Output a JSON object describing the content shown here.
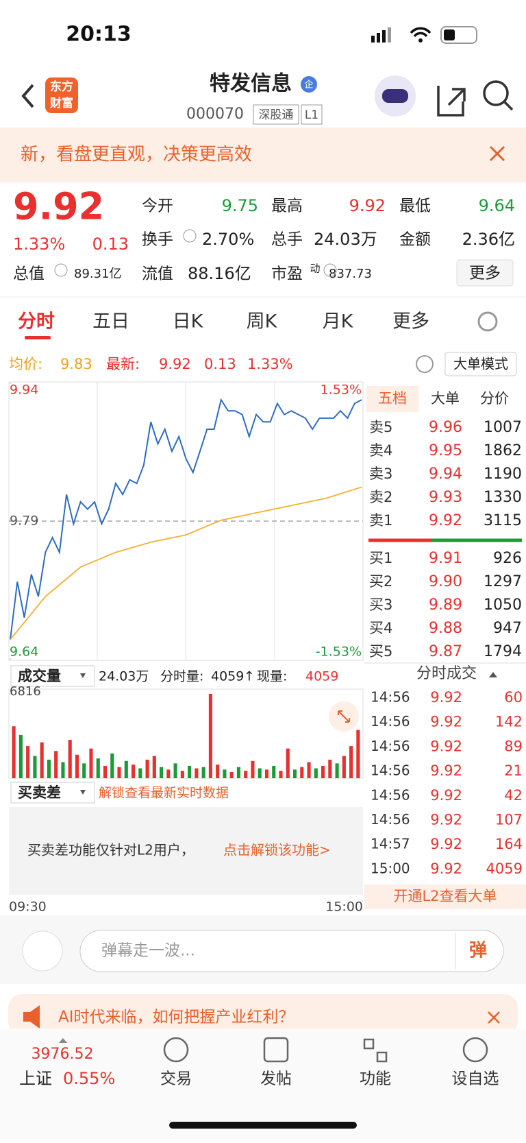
{
  "status": {
    "time": "20:13"
  },
  "header": {
    "logo": [
      "东方",
      "财富"
    ],
    "title": "特发信息",
    "badge": "企",
    "code": "000070",
    "tags": [
      "深股通",
      "L1"
    ]
  },
  "banner": {
    "text": "新，看盘更直观，决策更高效"
  },
  "quote": {
    "price": "9.92",
    "change_pct": "1.33%",
    "change": "0.13",
    "stats": [
      [
        "今开",
        "9.75"
      ],
      [
        "最高",
        "9.92"
      ],
      [
        "最低",
        "9.64"
      ],
      [
        "换手",
        "2.70%"
      ],
      [
        "总手",
        "24.03万"
      ],
      [
        "金额",
        "2.36亿"
      ],
      [
        "总值",
        "89.31亿"
      ],
      [
        "流值",
        "88.16亿"
      ],
      [
        "市盈",
        "837.73"
      ]
    ],
    "pe_sup": "动",
    "more": "更多"
  },
  "tabs": [
    "分时",
    "五日",
    "日K",
    "周K",
    "月K",
    "更多"
  ],
  "info": {
    "avg_label": "均价:",
    "avg": "9.83",
    "latest_label": "最新:",
    "latest": "9.92",
    "change": "0.13",
    "change_pct": "1.33%",
    "mode": "大单模式"
  },
  "chart_data": {
    "type": "line",
    "ylim": [
      9.64,
      9.94
    ],
    "yticks": [
      9.64,
      9.79,
      9.94
    ],
    "pct_labels": [
      "1.53%",
      "-1.53%"
    ],
    "x_labels": [
      "09:30",
      "15:00"
    ],
    "series": [
      {
        "color": "#2d6cc0",
        "values": [
          9.661,
          9.724,
          9.685,
          9.732,
          9.708,
          9.756,
          9.772,
          9.756,
          9.819,
          9.787,
          9.811,
          9.803,
          9.811,
          9.787,
          9.803,
          9.831,
          9.819,
          9.835,
          9.831,
          9.851,
          9.898,
          9.874,
          9.89,
          9.866,
          9.882,
          9.858,
          9.843,
          9.866,
          9.89,
          9.89,
          9.922,
          9.91,
          9.91,
          9.906,
          9.882,
          9.906,
          9.898,
          9.898,
          9.918,
          9.906,
          9.91,
          9.906,
          9.902,
          9.89,
          9.902,
          9.902,
          9.902,
          9.91,
          9.902,
          9.918,
          9.922
        ]
      },
      {
        "color": "#f5b02e",
        "values": [
          9.661,
          9.708,
          9.74,
          9.756,
          9.767,
          9.775,
          9.791,
          9.799,
          9.807,
          9.815,
          9.827
        ]
      }
    ]
  },
  "order_book": {
    "tabs": [
      "五档",
      "大单",
      "分价"
    ],
    "asks": [
      [
        "卖5",
        "9.96",
        "1007"
      ],
      [
        "卖4",
        "9.95",
        "1862"
      ],
      [
        "卖3",
        "9.94",
        "1190"
      ],
      [
        "卖2",
        "9.93",
        "1330"
      ],
      [
        "卖1",
        "9.92",
        "3115"
      ]
    ],
    "bids": [
      [
        "买1",
        "9.91",
        "926"
      ],
      [
        "买2",
        "9.90",
        "1297"
      ],
      [
        "买3",
        "9.89",
        "1050"
      ],
      [
        "买4",
        "9.88",
        "947"
      ],
      [
        "买5",
        "9.87",
        "1794"
      ]
    ]
  },
  "volume": {
    "selector": "成交量",
    "total": "24.03万",
    "interval_label": "分时量:",
    "interval": "4059",
    "arrow": "↑",
    "current_label": "现量:",
    "current": "4059",
    "ylim": [
      0,
      6816
    ],
    "yticks": [
      6816
    ],
    "values": [
      4200,
      3500,
      2600,
      1800,
      2900,
      1500,
      2200,
      1300,
      3100,
      1900,
      1200,
      2400,
      1600,
      1000,
      2000,
      900,
      1400,
      1100,
      800,
      1500,
      1800,
      900,
      700,
      1200,
      600,
      1000,
      800,
      900,
      6816,
      1100,
      700,
      500,
      900,
      600,
      1400,
      800,
      700,
      1000,
      600,
      2400,
      700,
      900,
      1300,
      800,
      1000,
      1500,
      1200,
      1800,
      2600,
      3900
    ],
    "colors": [
      "#e8312f",
      "#1a9b38",
      "#e8312f",
      "#1a9b38",
      "#e8312f",
      "#1a9b38",
      "#e8312f",
      "#1a9b38",
      "#e8312f",
      "#e8312f",
      "#1a9b38",
      "#e8312f",
      "#1a9b38",
      "#e8312f",
      "#1a9b38",
      "#e8312f",
      "#1a9b38",
      "#e8312f",
      "#1a9b38",
      "#e8312f",
      "#e8312f",
      "#1a9b38",
      "#e8312f",
      "#1a9b38",
      "#e8312f",
      "#1a9b38",
      "#e8312f",
      "#1a9b38",
      "#e8312f",
      "#e8312f",
      "#1a9b38",
      "#e8312f",
      "#1a9b38",
      "#e8312f",
      "#e8312f",
      "#1a9b38",
      "#e8312f",
      "#1a9b38",
      "#e8312f",
      "#e8312f",
      "#1a9b38",
      "#e8312f",
      "#e8312f",
      "#1a9b38",
      "#e8312f",
      "#e8312f",
      "#1a9b38",
      "#e8312f",
      "#e8312f",
      "#e8312f"
    ]
  },
  "trades": {
    "title": "分时成交",
    "rows": [
      [
        "14:56",
        "9.92",
        "60"
      ],
      [
        "14:56",
        "9.92",
        "142"
      ],
      [
        "14:56",
        "9.92",
        "89"
      ],
      [
        "14:56",
        "9.92",
        "21"
      ],
      [
        "14:56",
        "9.92",
        "42"
      ],
      [
        "14:56",
        "9.92",
        "107"
      ],
      [
        "14:57",
        "9.92",
        "164"
      ],
      [
        "15:00",
        "9.92",
        "4059"
      ]
    ],
    "footer": "开通L2查看大单"
  },
  "buysell": {
    "selector": "买卖差",
    "hint": "解锁查看最新实时数据",
    "notice": "买卖差功能仅针对L2用户，",
    "link": "点击解锁该功能>"
  },
  "comment": {
    "placeholder": "弹幕走一波...",
    "button": "弹"
  },
  "ad": {
    "text": "AI时代来临，如何把握产业红利？"
  },
  "nav": {
    "index": "3976.52",
    "index_name": "上证",
    "index_pct": "0.55%",
    "items": [
      "交易",
      "发帖",
      "功能",
      "设自选"
    ]
  }
}
